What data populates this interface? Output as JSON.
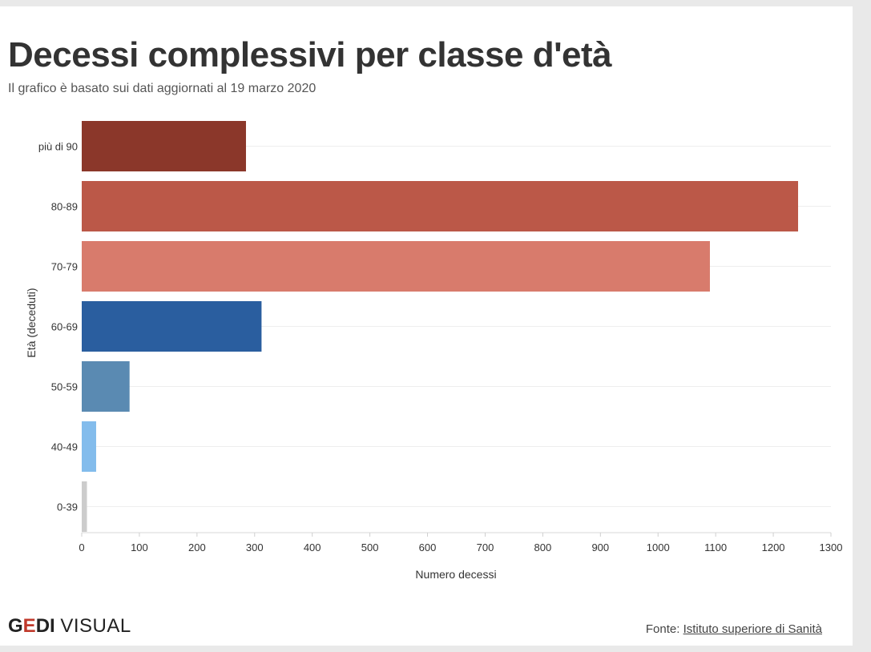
{
  "logo": {
    "part1": "G",
    "part2": "E",
    "part3": "DI",
    "part4": "VISUAL"
  },
  "source": {
    "prefix": "Fonte:",
    "link": "Istituto superiore di Sanità"
  },
  "colors": {
    "più di 90": "#8b372a",
    "80-89": "#bb5848",
    "70-79": "#d87b6c",
    "60-69": "#2a5e9f",
    "50-59": "#5a8ab2",
    "40-49": "#83bcec",
    "0-39": "#cccccc"
  },
  "chart_data": {
    "type": "bar",
    "orientation": "horizontal",
    "title": "Decessi complessivi per classe d'età",
    "subtitle": "Il grafico è basato sui dati aggiornati al 19 marzo 2020",
    "xlabel": "Numero decessi",
    "ylabel": "Età (deceduti)",
    "xlim": [
      0,
      1300
    ],
    "xticks": [
      "0",
      "100",
      "200",
      "300",
      "400",
      "500",
      "600",
      "700",
      "800",
      "900",
      "1000",
      "1100",
      "1200",
      "1300"
    ],
    "grid": true,
    "categories": [
      "più di 90",
      "80-89",
      "70-79",
      "60-69",
      "50-59",
      "40-49",
      "0-39"
    ],
    "values": [
      285,
      1243,
      1090,
      312,
      83,
      25,
      9
    ]
  }
}
